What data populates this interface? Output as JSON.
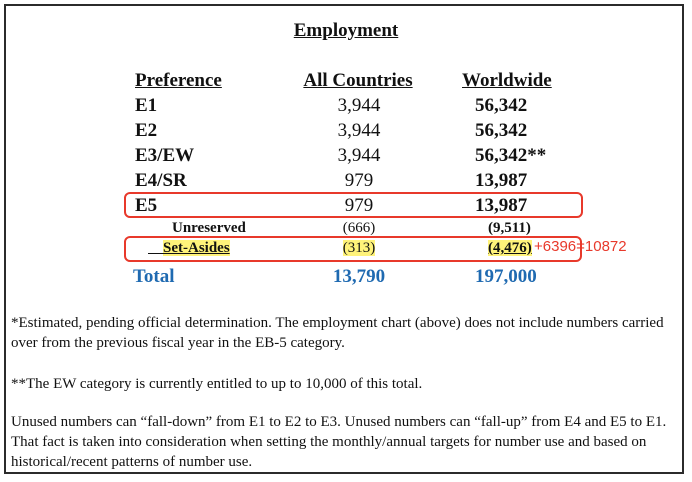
{
  "title": "Employment",
  "headers": {
    "preference": "Preference",
    "all_countries": "All Countries",
    "worldwide": "Worldwide"
  },
  "rows": [
    {
      "preference": "E1",
      "all_countries": "3,944",
      "worldwide": "56,342"
    },
    {
      "preference": "E2",
      "all_countries": "3,944",
      "worldwide": "56,342"
    },
    {
      "preference": "E3/EW",
      "all_countries": "3,944",
      "worldwide": "56,342**"
    },
    {
      "preference": "E4/SR",
      "all_countries": "979",
      "worldwide": "13,987"
    },
    {
      "preference": "E5",
      "all_countries": "979",
      "worldwide": "13,987"
    }
  ],
  "sub_rows": [
    {
      "preference": "Unreserved",
      "all_countries": "(666)",
      "worldwide": "(9,511)"
    },
    {
      "preference": "Set-Asides",
      "all_countries": "(313)",
      "worldwide": "(4,476)"
    }
  ],
  "total": {
    "label": "Total",
    "all_countries": "13,790",
    "worldwide": "197,000"
  },
  "annotation": "+6396=10872",
  "highlight_color": "#fff37a",
  "annotation_color": "#e8392b",
  "total_color": "#1f6ab1",
  "notes": [
    "*Estimated, pending official determination. The employment chart (above) does not include numbers carried over from the previous fiscal year in the EB-5 category.",
    "**The EW category is currently entitled to up to 10,000 of this total.",
    "Unused numbers can “fall-down” from E1 to E2 to E3.  Unused numbers can “fall-up” from E4 and E5 to E1.  That fact is taken into consideration when setting the monthly/annual targets for number use and based on historical/recent patterns of number use."
  ]
}
